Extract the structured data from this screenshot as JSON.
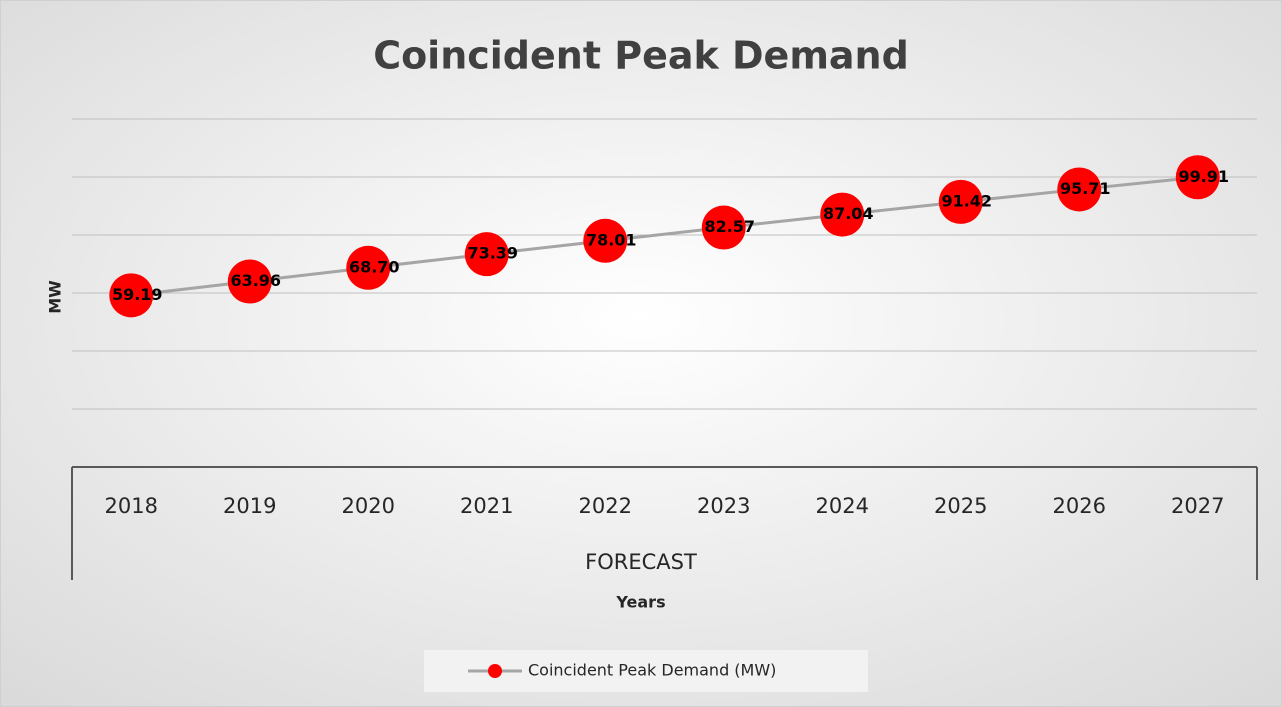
{
  "chart_data": {
    "type": "line",
    "title": "Coincident Peak Demand",
    "x_label": "Years",
    "x_group": "FORECAST",
    "y_label": "MW",
    "categories": [
      "2018",
      "2019",
      "2020",
      "2021",
      "2022",
      "2023",
      "2024",
      "2025",
      "2026",
      "2027"
    ],
    "series": [
      {
        "name": "Coincident Peak Demand (MW)",
        "color": "#ff0000",
        "line_color": "#a5a5a5",
        "values": [
          59.19,
          63.96,
          68.7,
          73.39,
          78.01,
          82.57,
          87.04,
          91.42,
          95.71,
          99.91
        ],
        "value_labels": [
          "59.19",
          "63.96",
          "68.70",
          "73.39",
          "78.01",
          "82.57",
          "87.04",
          "91.42",
          "95.71",
          "99.91"
        ]
      }
    ],
    "ylim": [
      0,
      120
    ],
    "yticks": [
      0,
      20,
      40,
      60,
      80,
      100,
      120
    ],
    "grid": true,
    "legend": "bottom"
  }
}
